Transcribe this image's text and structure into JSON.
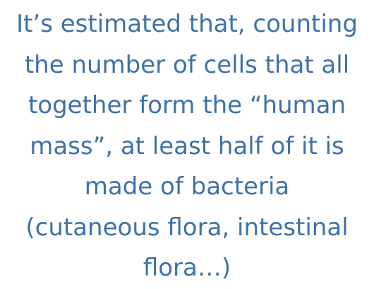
{
  "quote": {
    "lines": [
      "It’s estimated that, counting",
      "the number of cells that all",
      "together form the “human",
      "mass”, at least half of it is",
      "made of bacteria",
      "(cutaneous flora, intestinal",
      "flora…)"
    ],
    "color": "#3d72a8",
    "background": "#ffffff"
  }
}
